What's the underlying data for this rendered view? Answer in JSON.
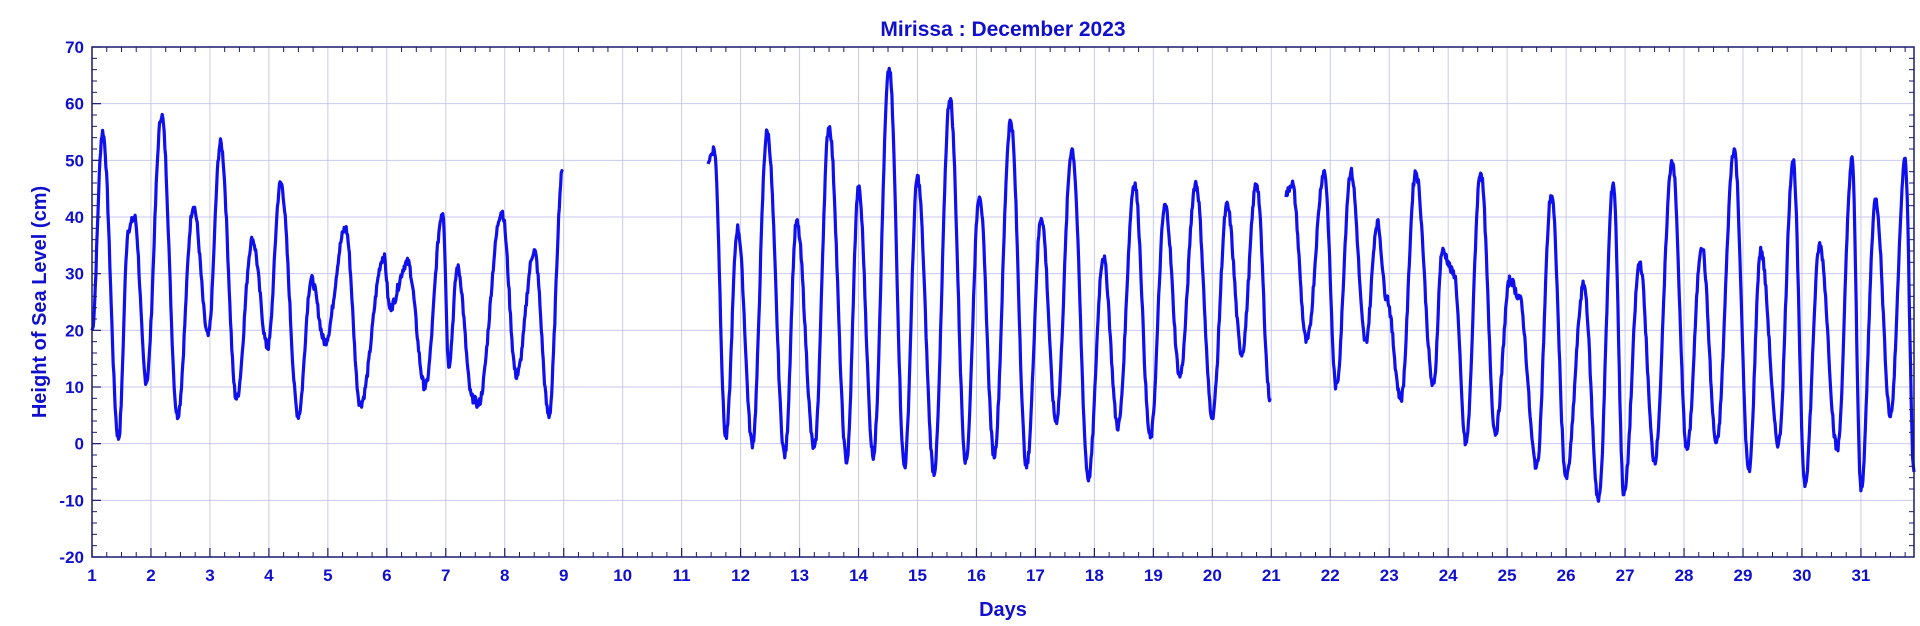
{
  "chart_data": {
    "type": "line",
    "title": "Mirissa : December 2023",
    "xlabel": "Days",
    "ylabel": "Height of Sea Level (cm)",
    "xlim": [
      1,
      31.9
    ],
    "ylim": [
      -20,
      70
    ],
    "x_ticks": [
      1,
      2,
      3,
      4,
      5,
      6,
      7,
      8,
      9,
      10,
      11,
      12,
      13,
      14,
      15,
      16,
      17,
      18,
      19,
      20,
      21,
      22,
      23,
      24,
      25,
      26,
      27,
      28,
      29,
      30,
      31
    ],
    "y_ticks": [
      -20,
      -10,
      0,
      10,
      20,
      30,
      40,
      50,
      60,
      70
    ],
    "grid": true,
    "colors": {
      "series": "#1010ee",
      "text": "#1010cc",
      "grid": "#c9c9ee",
      "frame": "#1a1a6e"
    },
    "series": [
      {
        "segment": 1,
        "x": [
          1.0,
          1.18,
          1.45,
          1.62,
          1.72,
          1.92,
          2.18,
          2.45,
          2.72,
          2.97,
          3.18,
          3.45,
          3.72,
          3.98,
          4.2,
          4.5,
          4.72,
          4.95,
          5.3,
          5.55,
          5.95,
          6.05,
          6.35,
          6.65,
          6.95,
          7.05,
          7.2,
          7.45,
          7.55,
          7.95,
          8.2,
          8.5,
          8.75,
          8.98
        ],
        "y": [
          20,
          55,
          1,
          38,
          40,
          11,
          58,
          5,
          42,
          19,
          53,
          8,
          36,
          17,
          46,
          5,
          29,
          18,
          38,
          7,
          33,
          24,
          32,
          10,
          41,
          14,
          31,
          8,
          7,
          41,
          12,
          34,
          5,
          48
        ]
      },
      {
        "segment": 2,
        "x": [
          11.45,
          11.55,
          11.75,
          11.95,
          12.2,
          12.45,
          12.75,
          12.95,
          13.25,
          13.5,
          13.8,
          14.0,
          14.25,
          14.52,
          14.78,
          15.0,
          15.28,
          15.55,
          15.82,
          16.05,
          16.3,
          16.58,
          16.85,
          17.1,
          17.35,
          17.62,
          17.9,
          18.15,
          18.4,
          18.68,
          18.95,
          19.2,
          19.45,
          19.72,
          20.0,
          20.25,
          20.5,
          20.75,
          20.98
        ],
        "y": [
          50,
          52,
          1,
          38,
          0,
          55,
          -2,
          39,
          -1,
          56,
          -3,
          45,
          -2,
          66,
          -4,
          47,
          -5,
          61,
          -3,
          44,
          -2,
          57,
          -4,
          40,
          4,
          52,
          -6,
          33,
          3,
          46,
          1,
          42,
          12,
          46,
          5,
          42,
          16,
          46,
          8
        ]
      },
      {
        "segment": 3,
        "x": [
          21.25,
          21.35,
          21.6,
          21.9,
          22.1,
          22.35,
          22.6,
          22.8,
          22.95,
          23.2,
          23.45,
          23.75,
          23.9,
          24.1,
          24.3,
          24.55,
          24.8,
          25.05,
          25.2,
          25.5,
          25.75,
          26.0,
          26.3,
          26.55,
          26.8,
          26.98,
          27.25,
          27.5,
          27.8,
          28.05,
          28.3,
          28.55,
          28.85,
          29.1,
          29.3,
          29.6,
          29.85,
          30.05,
          30.3,
          30.6,
          30.85,
          31.0,
          31.25,
          31.5,
          31.75,
          31.9
        ],
        "y": [
          44,
          46,
          18,
          48,
          10,
          48,
          18,
          39,
          26,
          8,
          48,
          10,
          34,
          30,
          0,
          48,
          2,
          29,
          26,
          -4,
          44,
          -6,
          28,
          -10,
          46,
          -9,
          32,
          -3,
          50,
          -1,
          35,
          0,
          52,
          -5,
          34,
          0,
          50,
          -7,
          35,
          -1,
          50,
          -8,
          43,
          5,
          50,
          -5
        ]
      }
    ]
  }
}
